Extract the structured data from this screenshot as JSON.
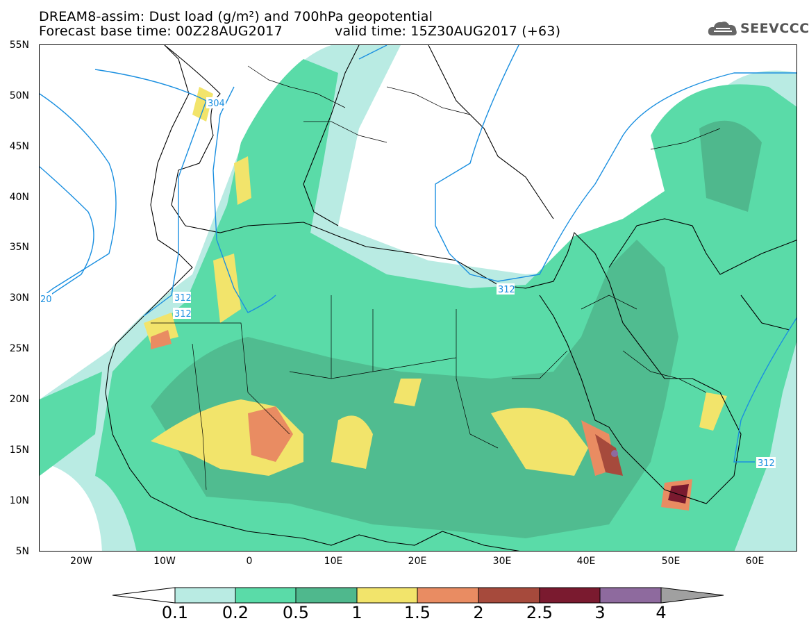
{
  "header": {
    "title_line1": "DREAM8-assim: Dust load (g/m²) and 700hPa geopotential",
    "title_line2_left": "Forecast base time: 00Z28AUG2017",
    "title_line2_right": "valid time: 15Z30AUG2017 (+63)"
  },
  "logo": {
    "text": "SEEVCCC",
    "icon": "cloud-icon"
  },
  "axes": {
    "lat_labels": [
      "55N",
      "50N",
      "45N",
      "40N",
      "35N",
      "30N",
      "25N",
      "20N",
      "15N",
      "10N",
      "5N"
    ],
    "lon_labels": [
      "20W",
      "10W",
      "0",
      "10E",
      "20E",
      "30E",
      "40E",
      "50E",
      "60E"
    ]
  },
  "contours": {
    "labels": [
      "304",
      "312",
      "312",
      "312",
      "312",
      "20"
    ]
  },
  "colorbar": {
    "labels": [
      "0.1",
      "0.2",
      "0.5",
      "1",
      "1.5",
      "2",
      "2.5",
      "3",
      "4"
    ],
    "colors": [
      "#ffffff",
      "#b9ebe3",
      "#5adba8",
      "#4fb88d",
      "#f2e46b",
      "#e98c62",
      "#a64a3c",
      "#7a1a2f",
      "#8e6a9e",
      "#a0a0a0"
    ]
  }
}
